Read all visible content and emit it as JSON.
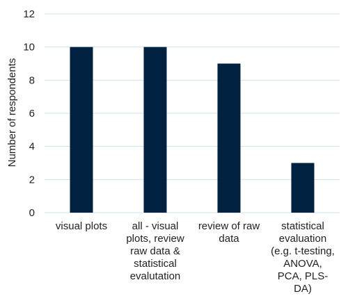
{
  "chart_data": {
    "type": "bar",
    "categories": [
      "visual plots",
      "all - visual plots, review raw data & statistical evalutation",
      "review of raw data",
      "statistical evaluation (e.g. t-testing, ANOVA, PCA, PLS-DA)"
    ],
    "category_lines": [
      [
        "visual plots"
      ],
      [
        "all - visual",
        "plots, review",
        "raw data &",
        "statistical",
        "evalutation"
      ],
      [
        "review of raw",
        "data"
      ],
      [
        "statistical",
        "evaluation",
        "(e.g. t-testing,",
        "ANOVA,",
        "PCA, PLS-",
        "DA)"
      ]
    ],
    "values": [
      10,
      10,
      9,
      3
    ],
    "title": "",
    "xlabel": "",
    "ylabel": "Number of respondents",
    "ylim": [
      0,
      12
    ],
    "yticks": [
      0,
      2,
      4,
      6,
      8,
      10,
      12
    ],
    "grid": true,
    "legend": "none",
    "colors": {
      "bar": "#002240",
      "grid": "#cfe0ec",
      "axis": "#cfe0ec",
      "text": "#222222"
    }
  }
}
